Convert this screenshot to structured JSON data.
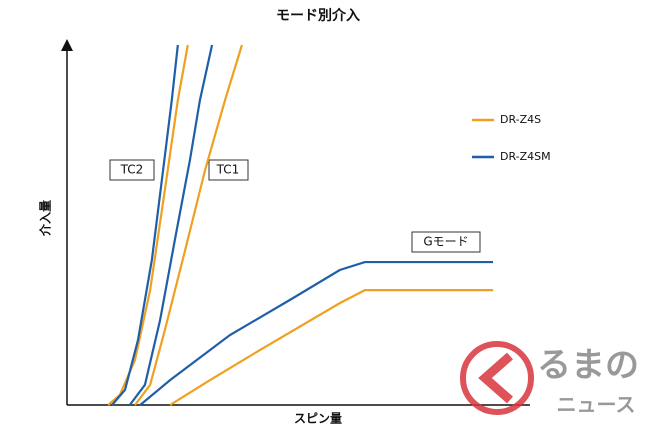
{
  "chart_data": {
    "type": "line",
    "title": "モード別介入",
    "x_label": "スピン量",
    "y_label": "介入量",
    "xlim": [
      0,
      100
    ],
    "ylim": [
      0,
      100
    ],
    "annotations": [
      "TC2",
      "TC1",
      "Gモード"
    ],
    "watermark": [
      "るまの",
      "ニュース"
    ],
    "series": [
      {
        "name": "DR-Z4S",
        "color": "#f0a020",
        "lines": [
          {
            "x": [
              9.5,
              12.2,
              15.7,
              19.2,
              22.6,
              25.6,
              27.9
            ],
            "values": [
              0,
              2.8,
              12.5,
              31.9,
              59.7,
              84.7,
              100
            ]
          },
          {
            "x": [
              15.7,
              19.2,
              22.6,
              27.3,
              31.9,
              36.5,
              40.4
            ],
            "values": [
              0,
              5.6,
              20.8,
              43.1,
              65.3,
              84.7,
              100
            ]
          },
          {
            "x": [
              23.8,
              33.0,
              44.6,
              63.0,
              68.8,
              98.4
            ],
            "values": [
              0,
              6.9,
              15.3,
              28.3,
              31.9,
              31.9
            ]
          }
        ]
      },
      {
        "name": "DR-Z4SM",
        "color": "#1f5fa8",
        "lines": [
          {
            "x": [
              10.4,
              13.4,
              16.4,
              19.6,
              22.2,
              24.2,
              25.6
            ],
            "values": [
              0,
              4.2,
              18.1,
              40.3,
              65.3,
              84.7,
              100
            ]
          },
          {
            "x": [
              14.5,
              18.0,
              21.5,
              24.9,
              28.4,
              30.7,
              33.5
            ],
            "values": [
              0,
              5.6,
              23.6,
              45.8,
              68.1,
              84.7,
              100
            ]
          },
          {
            "x": [
              16.9,
              23.8,
              37.6,
              51.5,
              63.0,
              68.8,
              98.4
            ],
            "values": [
              0,
              6.9,
              19.4,
              29.2,
              37.5,
              39.7,
              39.7
            ]
          }
        ]
      }
    ]
  }
}
